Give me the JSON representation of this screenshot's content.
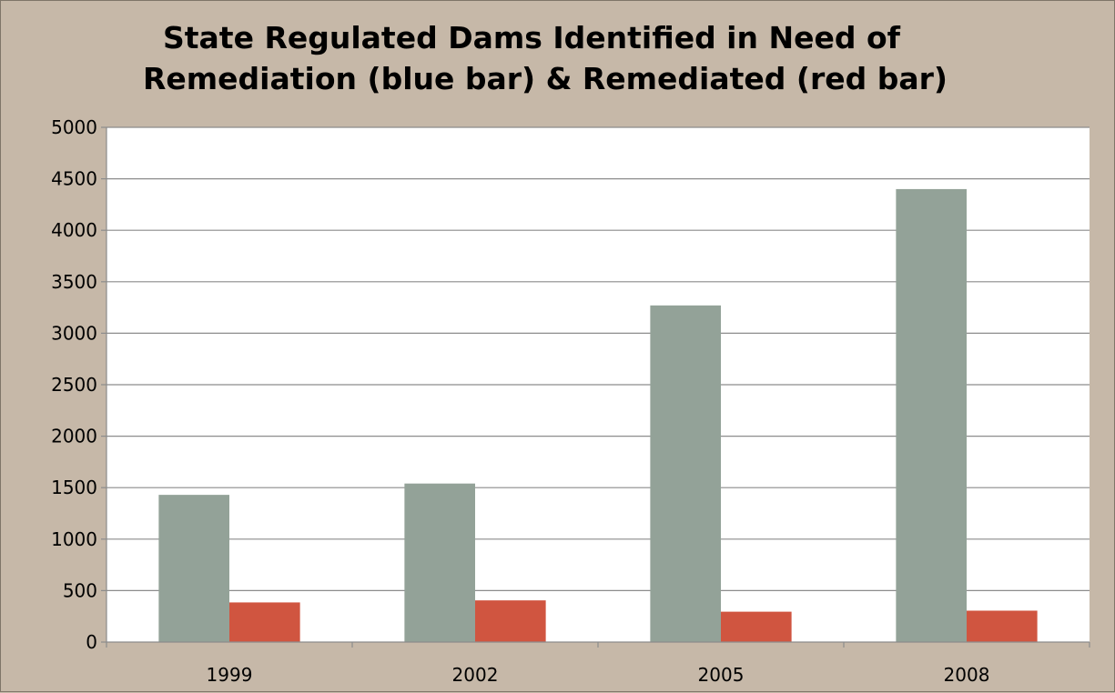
{
  "chart_data": {
    "type": "bar",
    "title_lines": [
      "State Regulated Dams Identified in Need of",
      "Remediation (blue bar) & Remediated (red bar)"
    ],
    "categories": [
      "1999",
      "2002",
      "2005",
      "2008"
    ],
    "series": [
      {
        "values": [
          1430,
          1540,
          3270,
          4400
        ]
      },
      {
        "values": [
          385,
          405,
          295,
          305
        ]
      }
    ],
    "ylim": [
      0,
      5000
    ],
    "yticks": [
      0,
      500,
      1000,
      1500,
      2000,
      2500,
      3000,
      3500,
      4000,
      4500,
      5000
    ],
    "grid": true,
    "legend": "none",
    "colors": {
      "series": [
        "#93a298",
        "#d05540"
      ],
      "plot_background": "#ffffff",
      "page_background": "#c6b8a8",
      "gridline": "#8c8c8c",
      "axis": "#8c8c8c"
    }
  }
}
